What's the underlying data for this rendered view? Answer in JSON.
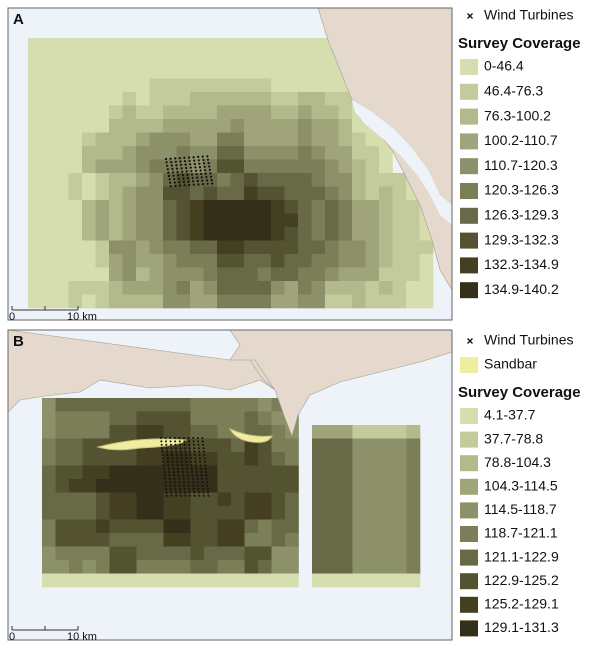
{
  "panels": [
    {
      "label": "A",
      "legend": {
        "turbines": "Wind Turbines",
        "coverage_title": "Survey Coverage",
        "classes": [
          {
            "label": "0-46.4",
            "color": "#d6deb0"
          },
          {
            "label": "46.4-76.3",
            "color": "#c3ca9b"
          },
          {
            "label": "76.3-100.2",
            "color": "#b2b98b"
          },
          {
            "label": "100.2-110.7",
            "color": "#9fa47b"
          },
          {
            "label": "110.7-120.3",
            "color": "#8d9169"
          },
          {
            "label": "120.3-126.3",
            "color": "#7b7e57"
          },
          {
            "label": "126.3-129.3",
            "color": "#686946"
          },
          {
            "label": "129.3-132.3",
            "color": "#545331"
          },
          {
            "label": "132.3-134.9",
            "color": "#433f20"
          },
          {
            "label": "134.9-140.2",
            "color": "#332f18"
          }
        ]
      },
      "scale": {
        "zero": "0",
        "distance": "10 km"
      }
    },
    {
      "label": "B",
      "legend": {
        "turbines": "Wind Turbines",
        "sandbar": "Sandbar",
        "sandbar_color": "#f1eda0",
        "coverage_title": "Survey Coverage",
        "classes": [
          {
            "label": "4.1-37.7",
            "color": "#d6deb0"
          },
          {
            "label": "37.7-78.8",
            "color": "#c3ca9b"
          },
          {
            "label": "78.8-104.3",
            "color": "#b2b98b"
          },
          {
            "label": "104.3-114.5",
            "color": "#9fa47b"
          },
          {
            "label": "114.5-118.7",
            "color": "#8d9169"
          },
          {
            "label": "118.7-121.1",
            "color": "#7b7e57"
          },
          {
            "label": "121.1-122.9",
            "color": "#686946"
          },
          {
            "label": "122.9-125.2",
            "color": "#545331"
          },
          {
            "label": "125.2-129.1",
            "color": "#433f20"
          },
          {
            "label": "129.1-131.3",
            "color": "#332f18"
          }
        ]
      },
      "scale": {
        "zero": "0",
        "distance": "10 km"
      }
    }
  ]
}
